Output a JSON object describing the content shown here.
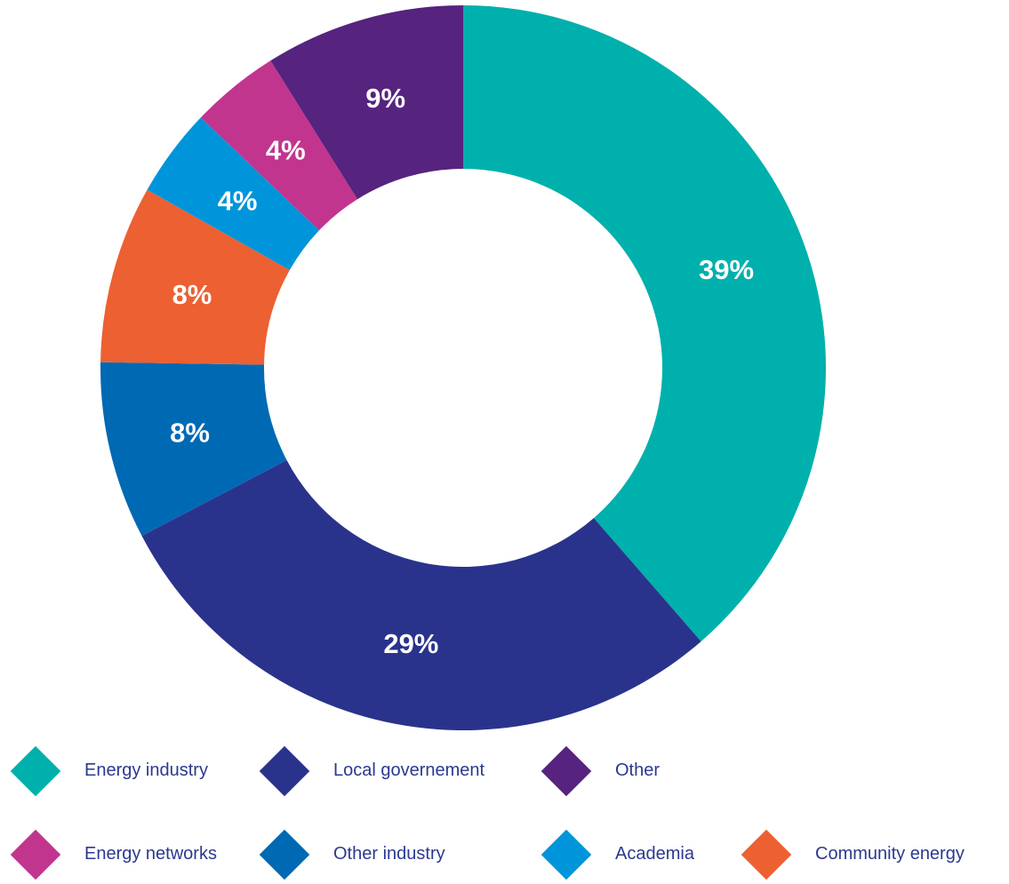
{
  "chart_data": {
    "type": "pie",
    "donut": true,
    "start": "top, clockwise",
    "slices": [
      {
        "name": "Energy industry",
        "value": 39,
        "label": "39%",
        "color": "#00b0ac"
      },
      {
        "name": "Local governement",
        "value": 29,
        "label": "29%",
        "color": "#2a338c"
      },
      {
        "name": "Other industry",
        "value": 8,
        "label": "8%",
        "color": "#0069b4"
      },
      {
        "name": "Community energy",
        "value": 8,
        "label": "8%",
        "color": "#ec6032"
      },
      {
        "name": "Academia",
        "value": 4,
        "label": "4%",
        "color": "#0095da"
      },
      {
        "name": "Energy networks",
        "value": 4,
        "label": "4%",
        "color": "#c1358e"
      },
      {
        "name": "Other",
        "value": 9,
        "label": "9%",
        "color": "#56237f"
      }
    ],
    "legend_placement": "bottom",
    "legend": [
      {
        "label": "Energy industry",
        "color": "#00b0ac"
      },
      {
        "label": "Local governement",
        "color": "#2a338c"
      },
      {
        "label": "Other",
        "color": "#56237f"
      },
      {
        "label": "Energy networks",
        "color": "#c1358e"
      },
      {
        "label": "Other industry",
        "color": "#0069b4"
      },
      {
        "label": "Academia",
        "color": "#0095da"
      },
      {
        "label": "Community energy",
        "color": "#ec6032"
      }
    ]
  }
}
